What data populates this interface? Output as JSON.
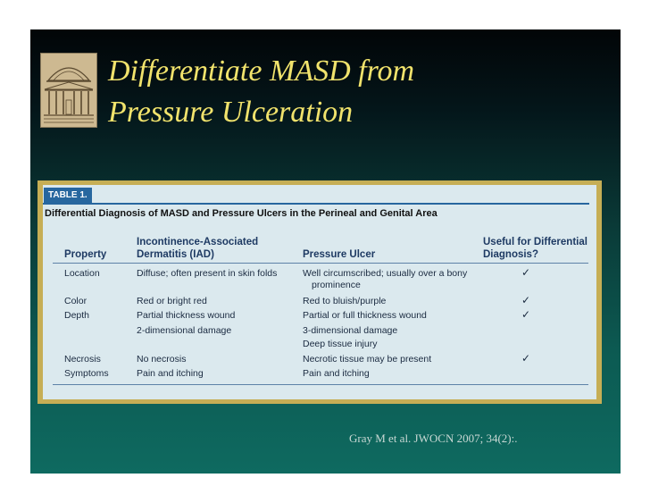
{
  "slide": {
    "title_lines": [
      "Differentiate MASD from",
      "Pressure Ulceration"
    ],
    "citation": "Gray M et al. JWOCN 2007; 34(2):."
  },
  "table": {
    "label": "TABLE 1.",
    "caption": "Differential Diagnosis of MASD and Pressure Ulcers in the Perineal and Genital Area",
    "headers": {
      "property": "Property",
      "iad_1": "Incontinence-Associated",
      "iad_2": "Dermatitis (IAD)",
      "pu": "Pressure Ulcer",
      "useful_1": "Useful for Differential",
      "useful_2": "Diagnosis?"
    },
    "rows": [
      {
        "property": "Location",
        "iad": "Diffuse; often present in skin folds",
        "pu": "Well circumscribed; usually over a bony",
        "pu2": "prominence",
        "check": "✓"
      },
      {
        "property": "Color",
        "iad": "Red or bright red",
        "pu": "Red to bluish/purple",
        "check": "✓"
      },
      {
        "property": "Depth",
        "iad": "Partial thickness wound",
        "pu": "Partial or full thickness wound",
        "check": "✓"
      },
      {
        "property": "",
        "iad": "2-dimensional damage",
        "pu": "3-dimensional damage",
        "pu2": "Deep tissue injury",
        "check": ""
      },
      {
        "property": "Necrosis",
        "iad": "No necrosis",
        "pu": "Necrotic tissue may be present",
        "check": "✓"
      },
      {
        "property": "Symptoms",
        "iad": "Pain and itching",
        "pu": "Pain and itching",
        "check": ""
      }
    ]
  }
}
